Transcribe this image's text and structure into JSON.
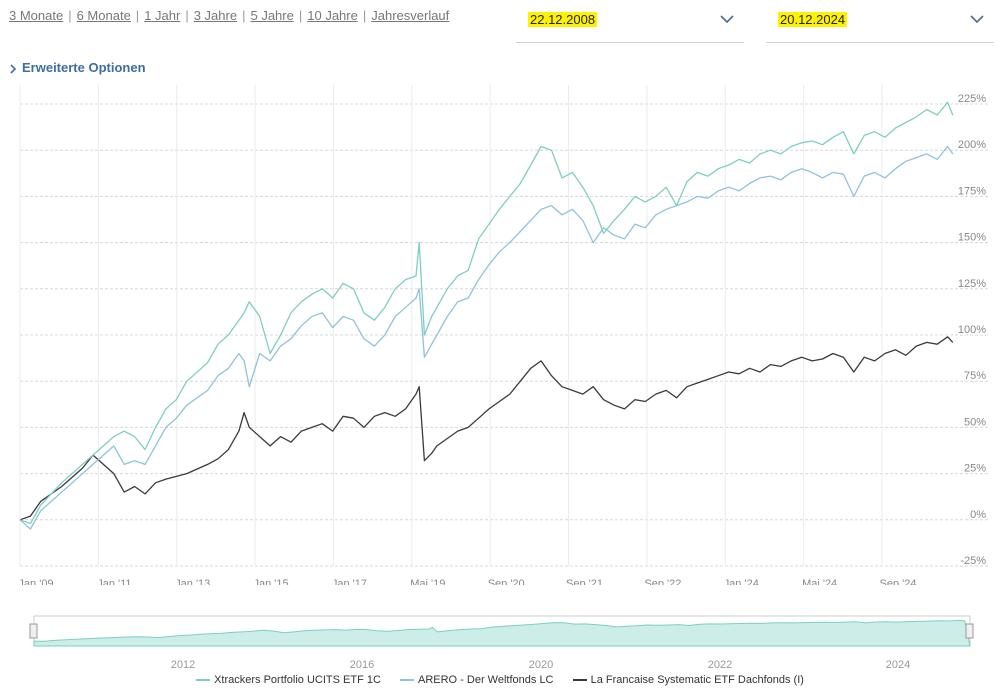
{
  "periods": [
    "3 Monate",
    "6 Monate",
    "1 Jahr",
    "3 Jahre",
    "5 Jahre",
    "10 Jahre",
    "Jahresverlauf"
  ],
  "date_from": "22.12.2008",
  "date_to": "20.12.2024",
  "options_label": "Erweiterte Optionen",
  "colors": {
    "s1": "#7dcfc1",
    "s2": "#8fc3dc",
    "s3": "#3a3a3a",
    "link": "#3f6ea3",
    "chevron": "#4a6b94",
    "highlight": "#fff200"
  },
  "chart_data": {
    "type": "line",
    "y_ticks": [
      "225%",
      "200%",
      "175%",
      "150%",
      "125%",
      "100%",
      "75%",
      "50%",
      "25%",
      "0%",
      "-25%"
    ],
    "ylim": [
      -25,
      225
    ],
    "x_ticks": [
      "Jan '09",
      "Jan '11",
      "Jan '13",
      "Jan '15",
      "Jan '17",
      "Mai '19",
      "Sep '20",
      "Sep '21",
      "Sep '22",
      "Jan '24",
      "Mai '24",
      "Sep '24"
    ],
    "grid": true,
    "legend_position": "bottom",
    "series": [
      {
        "name": "Xtrackers Portfolio UCITS ETF 1C",
        "color": "#7dcfc1",
        "points": [
          [
            0,
            0
          ],
          [
            1,
            -2
          ],
          [
            2,
            8
          ],
          [
            4,
            20
          ],
          [
            6,
            30
          ],
          [
            8,
            40
          ],
          [
            9,
            45
          ],
          [
            10,
            48
          ],
          [
            11,
            45
          ],
          [
            12,
            38
          ],
          [
            13,
            50
          ],
          [
            14,
            60
          ],
          [
            15,
            65
          ],
          [
            16,
            75
          ],
          [
            18,
            85
          ],
          [
            19,
            95
          ],
          [
            20,
            100
          ],
          [
            21,
            108
          ],
          [
            21.5,
            112
          ],
          [
            22,
            118
          ],
          [
            23,
            110
          ],
          [
            24,
            90
          ],
          [
            25,
            100
          ],
          [
            26,
            112
          ],
          [
            27,
            118
          ],
          [
            28,
            122
          ],
          [
            29,
            125
          ],
          [
            30,
            120
          ],
          [
            31,
            128
          ],
          [
            32,
            125
          ],
          [
            33,
            112
          ],
          [
            34,
            108
          ],
          [
            35,
            115
          ],
          [
            36,
            125
          ],
          [
            37,
            130
          ],
          [
            38,
            132
          ],
          [
            38.3,
            150
          ],
          [
            38.8,
            100
          ],
          [
            39.5,
            110
          ],
          [
            40,
            115
          ],
          [
            41,
            125
          ],
          [
            42,
            132
          ],
          [
            43,
            135
          ],
          [
            44,
            152
          ],
          [
            45,
            160
          ],
          [
            46,
            168
          ],
          [
            47,
            175
          ],
          [
            48,
            182
          ],
          [
            49,
            192
          ],
          [
            50,
            202
          ],
          [
            51,
            200
          ],
          [
            52,
            185
          ],
          [
            53,
            188
          ],
          [
            54,
            180
          ],
          [
            55,
            170
          ],
          [
            56,
            155
          ],
          [
            57,
            162
          ],
          [
            58,
            168
          ],
          [
            59,
            175
          ],
          [
            60,
            172
          ],
          [
            61,
            175
          ],
          [
            62,
            180
          ],
          [
            63,
            170
          ],
          [
            64,
            183
          ],
          [
            65,
            188
          ],
          [
            66,
            186
          ],
          [
            67,
            190
          ],
          [
            68,
            192
          ],
          [
            69,
            195
          ],
          [
            70,
            193
          ],
          [
            71,
            198
          ],
          [
            72,
            200
          ],
          [
            73,
            198
          ],
          [
            74,
            202
          ],
          [
            75,
            204
          ],
          [
            76,
            205
          ],
          [
            77,
            203
          ],
          [
            78,
            207
          ],
          [
            79,
            210
          ],
          [
            80,
            198
          ],
          [
            81,
            208
          ],
          [
            82,
            210
          ],
          [
            83,
            207
          ],
          [
            84,
            212
          ],
          [
            85,
            215
          ],
          [
            86,
            218
          ],
          [
            87,
            222
          ],
          [
            88,
            219
          ],
          [
            89,
            226
          ],
          [
            89.5,
            219
          ]
        ]
      },
      {
        "name": "ARERO - Der Weltfonds LC",
        "color": "#8fc3dc",
        "points": [
          [
            0,
            0
          ],
          [
            1,
            -5
          ],
          [
            2,
            5
          ],
          [
            4,
            15
          ],
          [
            6,
            25
          ],
          [
            8,
            35
          ],
          [
            9,
            40
          ],
          [
            10,
            30
          ],
          [
            11,
            32
          ],
          [
            12,
            30
          ],
          [
            13,
            40
          ],
          [
            14,
            50
          ],
          [
            15,
            55
          ],
          [
            16,
            62
          ],
          [
            18,
            70
          ],
          [
            19,
            78
          ],
          [
            20,
            82
          ],
          [
            21,
            90
          ],
          [
            21.5,
            86
          ],
          [
            22,
            72
          ],
          [
            23,
            90
          ],
          [
            24,
            86
          ],
          [
            25,
            94
          ],
          [
            26,
            98
          ],
          [
            27,
            105
          ],
          [
            28,
            110
          ],
          [
            29,
            112
          ],
          [
            30,
            104
          ],
          [
            31,
            110
          ],
          [
            32,
            108
          ],
          [
            33,
            98
          ],
          [
            34,
            94
          ],
          [
            35,
            100
          ],
          [
            36,
            110
          ],
          [
            37,
            115
          ],
          [
            38,
            120
          ],
          [
            38.3,
            125
          ],
          [
            38.8,
            88
          ],
          [
            39.5,
            95
          ],
          [
            40,
            100
          ],
          [
            41,
            110
          ],
          [
            42,
            118
          ],
          [
            43,
            120
          ],
          [
            44,
            130
          ],
          [
            45,
            138
          ],
          [
            46,
            145
          ],
          [
            47,
            150
          ],
          [
            48,
            156
          ],
          [
            49,
            162
          ],
          [
            50,
            168
          ],
          [
            51,
            170
          ],
          [
            52,
            165
          ],
          [
            53,
            168
          ],
          [
            54,
            162
          ],
          [
            55,
            150
          ],
          [
            56,
            158
          ],
          [
            57,
            154
          ],
          [
            58,
            152
          ],
          [
            59,
            160
          ],
          [
            60,
            158
          ],
          [
            61,
            165
          ],
          [
            62,
            168
          ],
          [
            63,
            170
          ],
          [
            64,
            172
          ],
          [
            65,
            175
          ],
          [
            66,
            174
          ],
          [
            67,
            178
          ],
          [
            68,
            180
          ],
          [
            69,
            178
          ],
          [
            70,
            182
          ],
          [
            71,
            185
          ],
          [
            72,
            186
          ],
          [
            73,
            184
          ],
          [
            74,
            188
          ],
          [
            75,
            190
          ],
          [
            76,
            188
          ],
          [
            77,
            185
          ],
          [
            78,
            188
          ],
          [
            79,
            187
          ],
          [
            80,
            175
          ],
          [
            81,
            186
          ],
          [
            82,
            188
          ],
          [
            83,
            185
          ],
          [
            84,
            190
          ],
          [
            85,
            194
          ],
          [
            86,
            196
          ],
          [
            87,
            198
          ],
          [
            88,
            195
          ],
          [
            89,
            202
          ],
          [
            89.5,
            198
          ]
        ]
      },
      {
        "name": "La Francaise Systematic ETF Dachfonds (I)",
        "color": "#3a3a3a",
        "points": [
          [
            0,
            0
          ],
          [
            1,
            2
          ],
          [
            2,
            10
          ],
          [
            4,
            18
          ],
          [
            6,
            28
          ],
          [
            7,
            35
          ],
          [
            8,
            30
          ],
          [
            9,
            25
          ],
          [
            10,
            15
          ],
          [
            11,
            18
          ],
          [
            12,
            14
          ],
          [
            13,
            20
          ],
          [
            14,
            22
          ],
          [
            16,
            25
          ],
          [
            18,
            30
          ],
          [
            19,
            33
          ],
          [
            20,
            38
          ],
          [
            21,
            48
          ],
          [
            21.5,
            58
          ],
          [
            22,
            50
          ],
          [
            23,
            45
          ],
          [
            24,
            40
          ],
          [
            25,
            45
          ],
          [
            26,
            42
          ],
          [
            27,
            48
          ],
          [
            28,
            50
          ],
          [
            29,
            52
          ],
          [
            30,
            48
          ],
          [
            31,
            56
          ],
          [
            32,
            55
          ],
          [
            33,
            50
          ],
          [
            34,
            56
          ],
          [
            35,
            58
          ],
          [
            36,
            56
          ],
          [
            37,
            60
          ],
          [
            38,
            68
          ],
          [
            38.3,
            72
          ],
          [
            38.8,
            32
          ],
          [
            39.5,
            36
          ],
          [
            40,
            40
          ],
          [
            41,
            44
          ],
          [
            42,
            48
          ],
          [
            43,
            50
          ],
          [
            44,
            55
          ],
          [
            45,
            60
          ],
          [
            46,
            64
          ],
          [
            47,
            68
          ],
          [
            48,
            75
          ],
          [
            49,
            82
          ],
          [
            50,
            86
          ],
          [
            51,
            78
          ],
          [
            52,
            72
          ],
          [
            53,
            70
          ],
          [
            54,
            68
          ],
          [
            55,
            72
          ],
          [
            56,
            65
          ],
          [
            57,
            62
          ],
          [
            58,
            60
          ],
          [
            59,
            65
          ],
          [
            60,
            64
          ],
          [
            61,
            68
          ],
          [
            62,
            70
          ],
          [
            63,
            66
          ],
          [
            64,
            72
          ],
          [
            65,
            74
          ],
          [
            66,
            76
          ],
          [
            67,
            78
          ],
          [
            68,
            80
          ],
          [
            69,
            79
          ],
          [
            70,
            82
          ],
          [
            71,
            80
          ],
          [
            72,
            84
          ],
          [
            73,
            83
          ],
          [
            74,
            86
          ],
          [
            75,
            88
          ],
          [
            76,
            86
          ],
          [
            77,
            87
          ],
          [
            78,
            90
          ],
          [
            79,
            88
          ],
          [
            80,
            80
          ],
          [
            81,
            88
          ],
          [
            82,
            86
          ],
          [
            83,
            90
          ],
          [
            84,
            92
          ],
          [
            85,
            89
          ],
          [
            86,
            94
          ],
          [
            87,
            96
          ],
          [
            88,
            95
          ],
          [
            89,
            99
          ],
          [
            89.5,
            96
          ]
        ]
      }
    ]
  },
  "navigator": {
    "x_ticks": [
      "2012",
      "2016",
      "2020",
      "2022",
      "2024"
    ]
  }
}
